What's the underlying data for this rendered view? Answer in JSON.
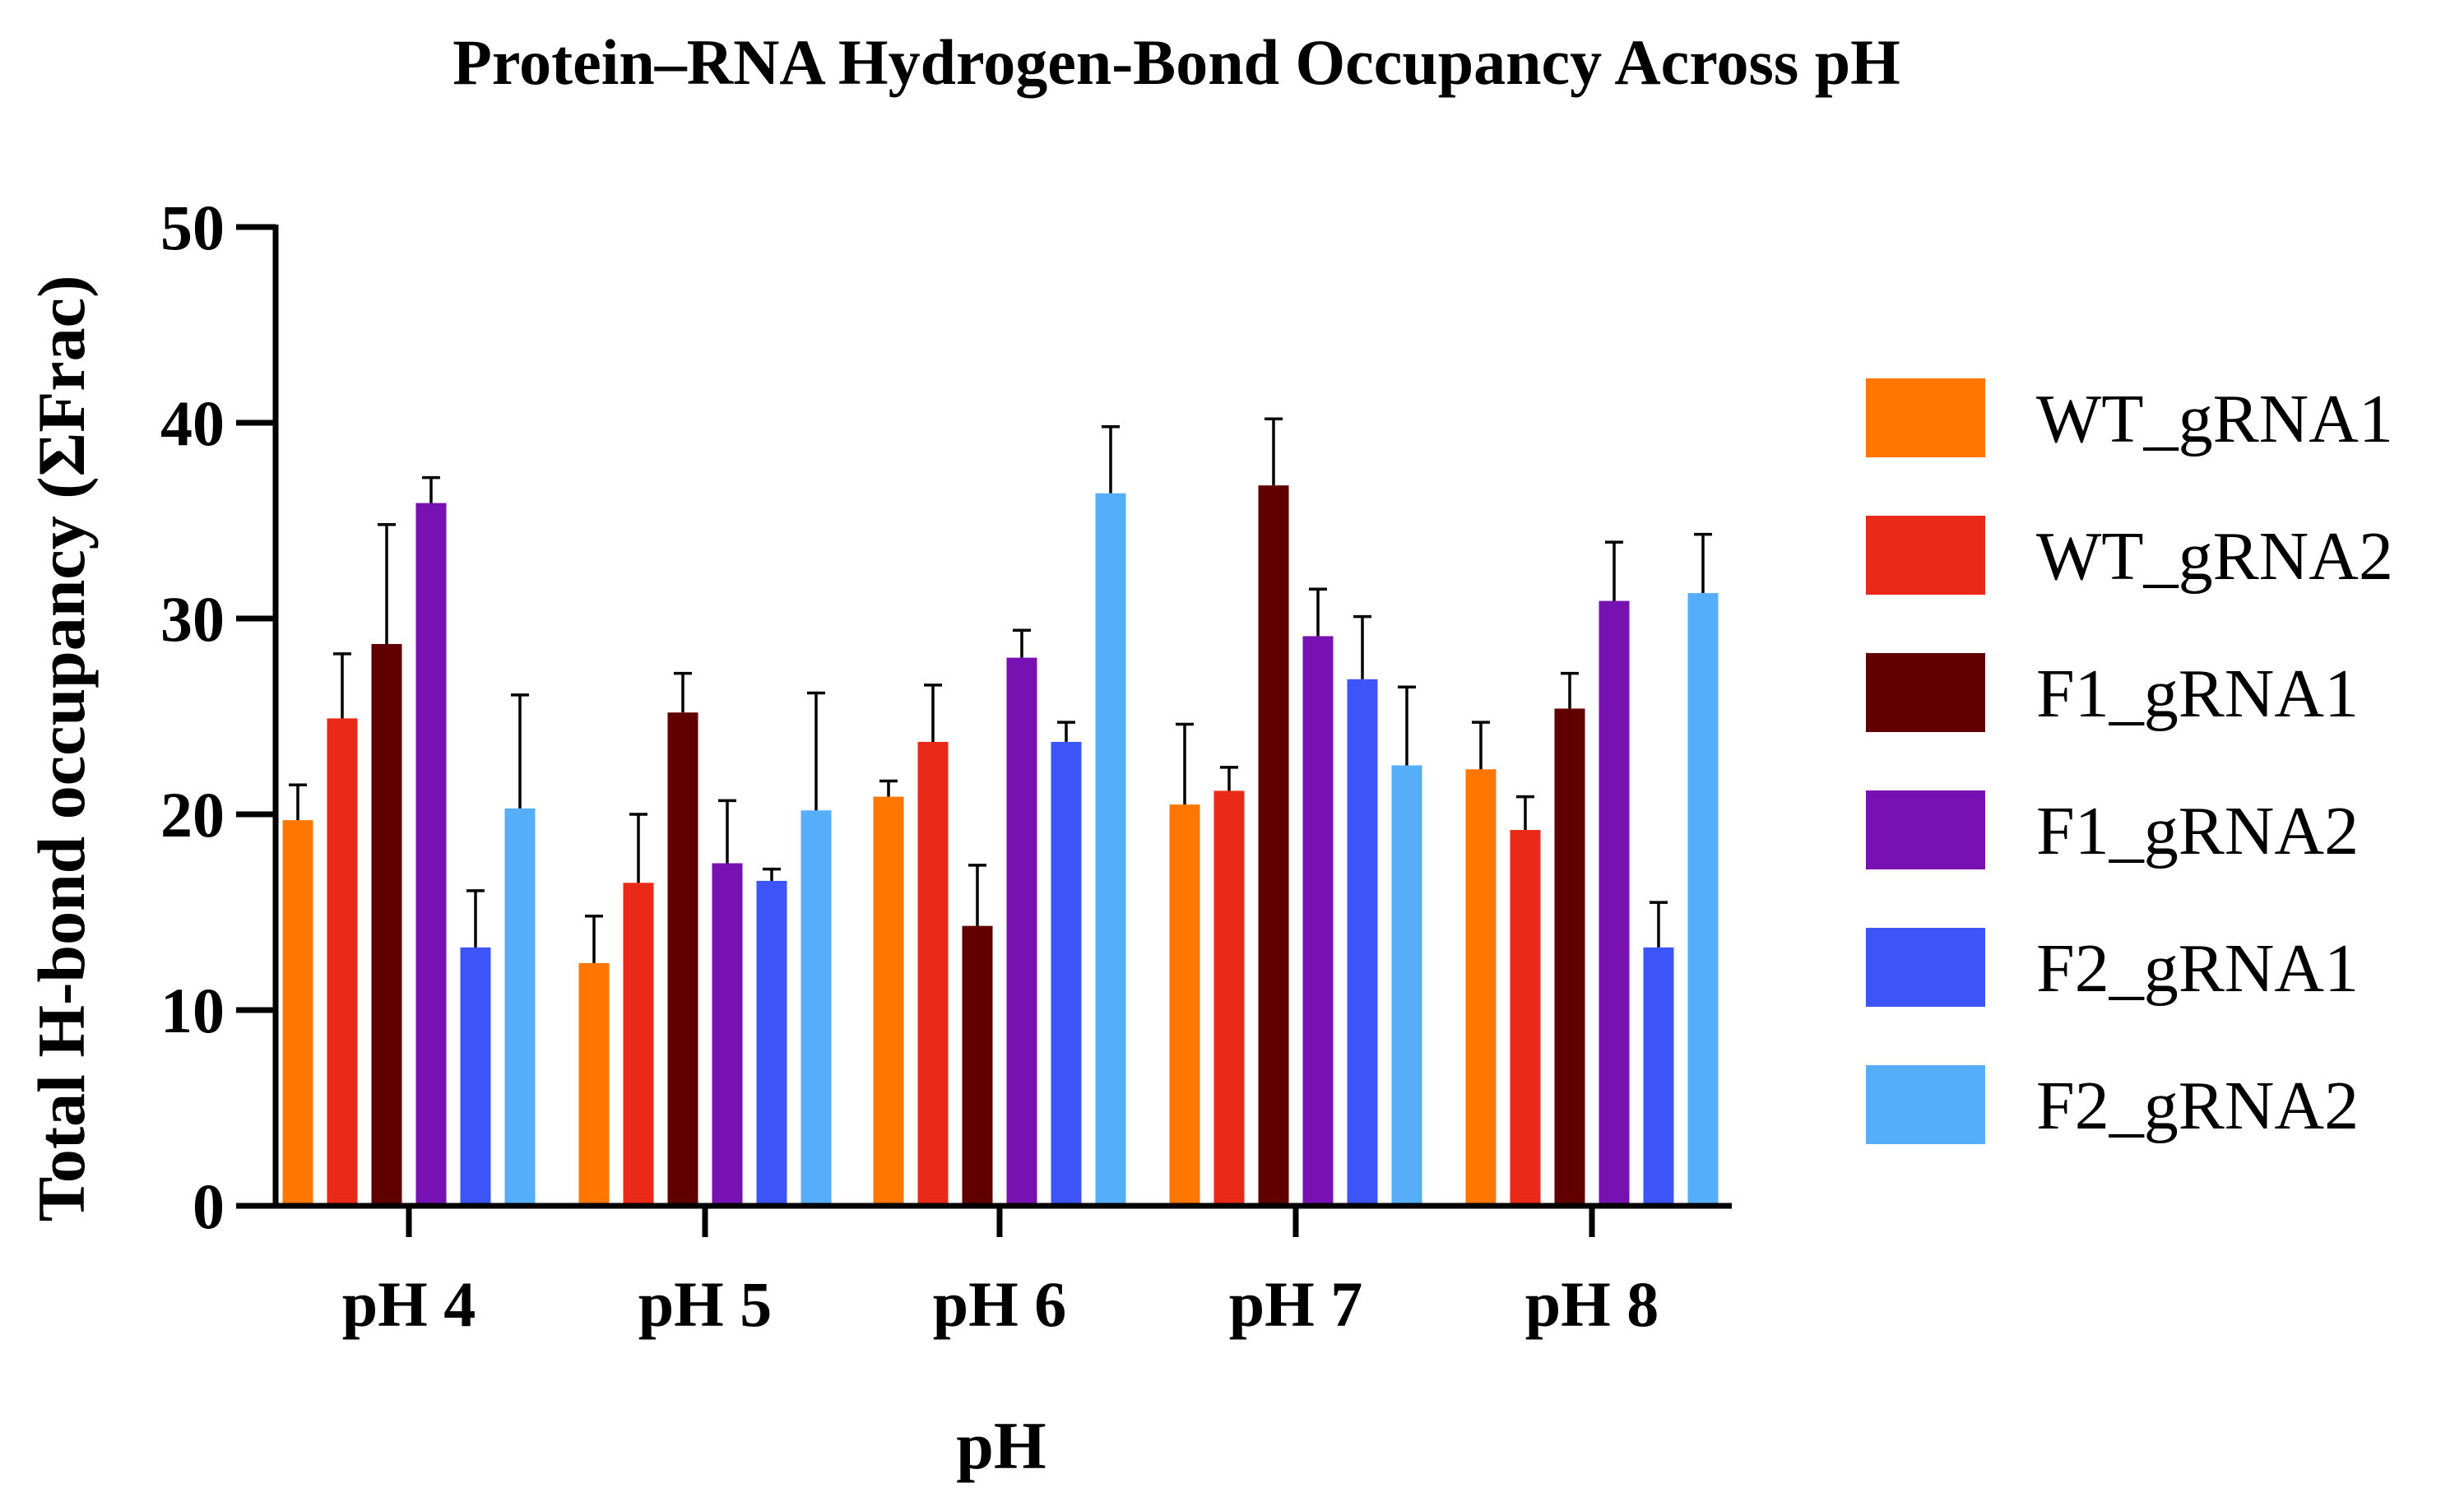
{
  "chart_data": {
    "type": "bar",
    "title": "Protein–RNA Hydrogen-Bond Occupancy Across pH",
    "xlabel": "pH",
    "ylabel": "Total H-bond occupancy (ΣFrac)",
    "ylim": [
      0,
      50
    ],
    "yticks": [
      0,
      10,
      20,
      30,
      40,
      50
    ],
    "categories": [
      "pH 4",
      "pH 5",
      "pH 6",
      "pH 7",
      "pH 8"
    ],
    "legend_position": "right",
    "series": [
      {
        "name": "WT_gRNA1",
        "color": "#FF7700",
        "values": [
          19.7,
          12.4,
          20.9,
          20.5,
          22.3
        ],
        "errors": [
          1.8,
          2.4,
          0.8,
          4.1,
          2.4
        ]
      },
      {
        "name": "WT_gRNA2",
        "color": "#EA2A18",
        "values": [
          24.9,
          16.5,
          23.7,
          21.2,
          19.2
        ],
        "errors": [
          3.3,
          3.5,
          2.9,
          1.2,
          1.7
        ]
      },
      {
        "name": "F1_gRNA1",
        "color": "#610000",
        "values": [
          28.7,
          25.2,
          14.3,
          36.8,
          25.4
        ],
        "errors": [
          6.1,
          2.0,
          3.1,
          3.4,
          1.8
        ]
      },
      {
        "name": "F1_gRNA2",
        "color": "#7811B2",
        "values": [
          35.9,
          17.5,
          28.0,
          29.1,
          30.9
        ],
        "errors": [
          1.3,
          3.2,
          1.4,
          2.4,
          3.0
        ]
      },
      {
        "name": "F2_gRNA1",
        "color": "#3D55F8",
        "values": [
          13.2,
          16.6,
          23.7,
          26.9,
          13.2
        ],
        "errors": [
          2.9,
          0.6,
          1.0,
          3.2,
          2.3
        ]
      },
      {
        "name": "F2_gRNA2",
        "color": "#56AEFB",
        "values": [
          20.3,
          20.2,
          36.4,
          22.5,
          31.3
        ],
        "errors": [
          5.8,
          6.0,
          3.4,
          4.0,
          3.0
        ]
      }
    ]
  }
}
